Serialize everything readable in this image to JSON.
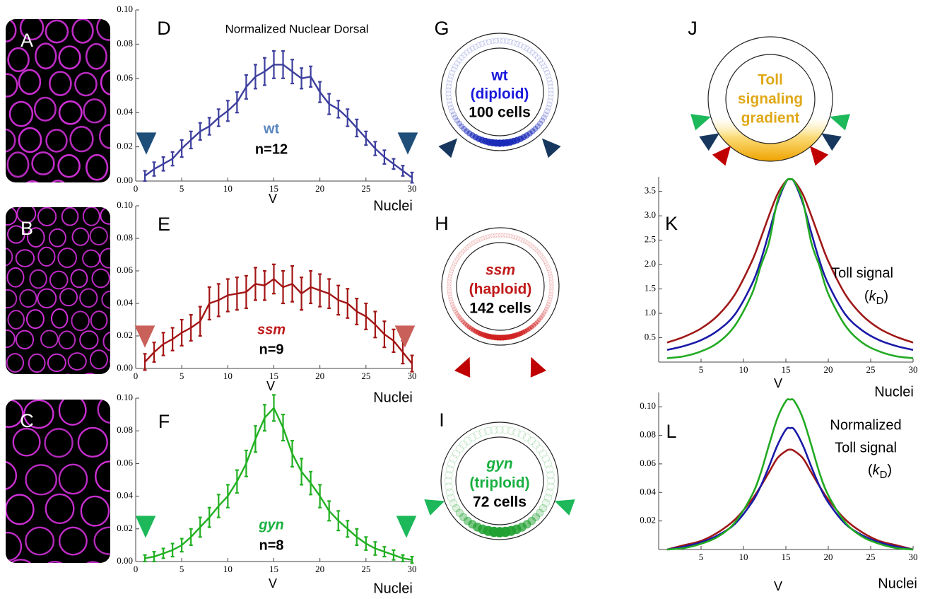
{
  "images": [
    {
      "panel": "A"
    },
    {
      "panel": "B"
    },
    {
      "panel": "C"
    }
  ],
  "diagrams": [
    {
      "panel": "G",
      "lines": [
        "wt",
        "(diploid)",
        "100 cells"
      ],
      "colors": [
        "#1a1add",
        "#1a1add",
        "#000000"
      ],
      "ring_color": "#1a2ab8",
      "marker_color": "#17375e"
    },
    {
      "panel": "H",
      "lines": [
        "ssm",
        "(haploid)",
        "142 cells"
      ],
      "colors": [
        "#c01818",
        "#c01818",
        "#000000"
      ],
      "ring_color": "#d02020",
      "marker_color": "#c00000"
    },
    {
      "panel": "I",
      "lines": [
        "gyn",
        "(triploid)",
        "72 cells"
      ],
      "colors": [
        "#18b040",
        "#18b040",
        "#000000"
      ],
      "ring_color": "#20a030",
      "marker_color": "#1cb85a"
    },
    {
      "panel": "J",
      "lines": [
        "Toll",
        "signaling",
        "gradient"
      ],
      "colors": [
        "#e0a818",
        "#e0a818",
        "#e0a818"
      ]
    }
  ],
  "chart_data": [
    {
      "type": "line",
      "panel": "D",
      "title": "Normalized Nuclear Dorsal",
      "annotations": [
        "wt",
        "n=12"
      ],
      "annotation_colors": [
        "#5b87c0",
        "#000000"
      ],
      "xlabel": "Nuclei",
      "v_label": "V",
      "marker_color": "#1f4e79",
      "x": [
        1,
        2,
        3,
        4,
        5,
        6,
        7,
        8,
        9,
        10,
        11,
        12,
        13,
        14,
        15,
        16,
        17,
        18,
        19,
        20,
        21,
        22,
        23,
        24,
        25,
        26,
        27,
        28,
        29,
        30
      ],
      "series": [
        {
          "color": "#3d3f9e",
          "values": [
            0.003,
            0.007,
            0.01,
            0.013,
            0.019,
            0.024,
            0.029,
            0.032,
            0.037,
            0.041,
            0.046,
            0.055,
            0.061,
            0.064,
            0.068,
            0.068,
            0.064,
            0.06,
            0.061,
            0.052,
            0.045,
            0.042,
            0.037,
            0.031,
            0.025,
            0.019,
            0.014,
            0.01,
            0.006,
            0.002
          ],
          "errors": [
            0.003,
            0.004,
            0.004,
            0.004,
            0.005,
            0.005,
            0.005,
            0.005,
            0.005,
            0.006,
            0.006,
            0.007,
            0.007,
            0.008,
            0.008,
            0.008,
            0.007,
            0.006,
            0.006,
            0.006,
            0.006,
            0.005,
            0.005,
            0.005,
            0.004,
            0.004,
            0.004,
            0.003,
            0.003,
            0.003
          ]
        }
      ],
      "xlim": [
        0,
        30
      ],
      "xticks": [
        0,
        5,
        10,
        15,
        20,
        25,
        30
      ],
      "ylim": [
        0,
        0.1
      ],
      "yticks": [
        {
          "value": 0,
          "label": "0.00"
        },
        0.02,
        0.04,
        0.06,
        0.08,
        {
          "value": 0.1,
          "label": "0.10"
        }
      ]
    },
    {
      "type": "line",
      "panel": "E",
      "annotations": [
        "ssm",
        "n=9"
      ],
      "annotation_colors": [
        "#c01818",
        "#000000"
      ],
      "xlabel": "Nuclei",
      "v_label": "V",
      "marker_color": "#c9605a",
      "x": [
        1,
        2,
        3,
        4,
        5,
        6,
        7,
        8,
        9,
        10,
        11,
        12,
        13,
        14,
        15,
        16,
        17,
        18,
        19,
        20,
        21,
        22,
        23,
        24,
        25,
        26,
        27,
        28,
        29,
        30
      ],
      "series": [
        {
          "color": "#a31515",
          "values": [
            0.004,
            0.01,
            0.015,
            0.018,
            0.022,
            0.025,
            0.029,
            0.04,
            0.042,
            0.045,
            0.046,
            0.047,
            0.052,
            0.051,
            0.055,
            0.05,
            0.052,
            0.046,
            0.05,
            0.048,
            0.046,
            0.042,
            0.04,
            0.035,
            0.032,
            0.027,
            0.021,
            0.017,
            0.01,
            0.003
          ],
          "errors": [
            0.005,
            0.006,
            0.007,
            0.007,
            0.008,
            0.008,
            0.009,
            0.01,
            0.01,
            0.01,
            0.01,
            0.01,
            0.01,
            0.009,
            0.009,
            0.01,
            0.011,
            0.01,
            0.01,
            0.01,
            0.009,
            0.009,
            0.009,
            0.008,
            0.008,
            0.008,
            0.008,
            0.007,
            0.007,
            0.005
          ]
        }
      ],
      "xlim": [
        0,
        30
      ],
      "xticks": [
        0,
        5,
        10,
        15,
        20,
        25,
        30
      ],
      "ylim": [
        0,
        0.1
      ],
      "yticks": [
        {
          "value": 0,
          "label": "0.00"
        },
        0.02,
        0.04,
        0.06,
        0.08,
        {
          "value": 0.1,
          "label": "0.10"
        }
      ]
    },
    {
      "type": "line",
      "panel": "F",
      "annotations": [
        "gyn",
        "n=8"
      ],
      "annotation_colors": [
        "#18b040",
        "#000000"
      ],
      "xlabel": "Nuclei",
      "v_label": "V",
      "marker_color": "#1cb85a",
      "x": [
        1,
        2,
        3,
        4,
        5,
        6,
        7,
        8,
        9,
        10,
        11,
        12,
        13,
        14,
        15,
        16,
        17,
        18,
        19,
        20,
        21,
        22,
        23,
        24,
        25,
        26,
        27,
        28,
        29,
        30
      ],
      "series": [
        {
          "color": "#22b022",
          "values": [
            0.002,
            0.003,
            0.005,
            0.007,
            0.01,
            0.015,
            0.021,
            0.027,
            0.034,
            0.04,
            0.049,
            0.06,
            0.075,
            0.088,
            0.094,
            0.082,
            0.066,
            0.055,
            0.048,
            0.04,
            0.031,
            0.025,
            0.02,
            0.015,
            0.011,
            0.008,
            0.006,
            0.004,
            0.002,
            0.001
          ],
          "errors": [
            0.002,
            0.003,
            0.003,
            0.004,
            0.004,
            0.005,
            0.006,
            0.006,
            0.007,
            0.007,
            0.007,
            0.008,
            0.008,
            0.008,
            0.008,
            0.008,
            0.008,
            0.008,
            0.007,
            0.007,
            0.006,
            0.006,
            0.005,
            0.005,
            0.004,
            0.004,
            0.003,
            0.003,
            0.002,
            0.002
          ]
        }
      ],
      "xlim": [
        0,
        30
      ],
      "xticks": [
        0,
        5,
        10,
        15,
        20,
        25,
        30
      ],
      "ylim": [
        0,
        0.1
      ],
      "yticks": [
        {
          "value": 0,
          "label": "0.00"
        },
        0.02,
        0.04,
        0.06,
        0.08,
        {
          "value": 0.1,
          "label": "0.10"
        }
      ]
    },
    {
      "type": "line",
      "panel": "K",
      "smooth": true,
      "annotations": [
        "Toll signal"
      ],
      "annotation_colors": [
        "#000000"
      ],
      "k_label": [
        "(",
        "k",
        "D",
        ")"
      ],
      "xlabel": "Nuclei",
      "v_label": "V",
      "x": [
        1,
        3,
        5,
        7,
        9,
        11,
        12,
        13,
        14,
        15,
        15.5,
        16,
        17,
        18,
        19,
        20,
        22,
        24,
        26,
        28,
        30
      ],
      "series": [
        {
          "color": "#a01818",
          "values": [
            0.4,
            0.52,
            0.69,
            0.96,
            1.39,
            2.07,
            2.52,
            3.0,
            3.44,
            3.71,
            3.75,
            3.71,
            3.44,
            3.0,
            2.52,
            2.07,
            1.39,
            0.96,
            0.69,
            0.52,
            0.4
          ]
        },
        {
          "color": "#1a1aa8",
          "values": [
            0.25,
            0.33,
            0.45,
            0.65,
            0.98,
            1.6,
            2.06,
            2.65,
            3.26,
            3.69,
            3.75,
            3.69,
            3.26,
            2.65,
            2.06,
            1.6,
            0.98,
            0.65,
            0.45,
            0.33,
            0.25
          ]
        },
        {
          "color": "#22aa22",
          "values": [
            0.08,
            0.12,
            0.22,
            0.4,
            0.75,
            1.4,
            1.95,
            2.45,
            3.3,
            3.7,
            3.75,
            3.7,
            3.3,
            2.45,
            1.95,
            1.4,
            0.75,
            0.4,
            0.22,
            0.12,
            0.08
          ]
        }
      ],
      "xlim": [
        0,
        30
      ],
      "xticks": [
        5,
        10,
        15,
        20,
        25,
        30
      ],
      "ylim": [
        0,
        3.8
      ],
      "yticks": [
        0.5,
        {
          "value": 1,
          "label": "1.0"
        },
        1.5,
        {
          "value": 2,
          "label": "2.0"
        },
        2.5,
        {
          "value": 3,
          "label": "3.0"
        },
        3.5
      ]
    },
    {
      "type": "line",
      "panel": "L",
      "smooth": true,
      "annotations": [
        "Normalized",
        "Toll signal"
      ],
      "annotation_colors": [
        "#000000",
        "#000000"
      ],
      "k_label": [
        "(",
        "k",
        "D",
        ")"
      ],
      "xlabel": "Nuclei",
      "v_label": "V",
      "x": [
        1,
        3,
        5,
        7,
        9,
        11,
        12,
        13,
        14,
        15,
        15.5,
        16,
        17,
        18,
        19,
        20,
        22,
        24,
        26,
        28,
        30
      ],
      "series": [
        {
          "color": "#a01818",
          "values": [
            0,
            0.003,
            0.006,
            0.012,
            0.021,
            0.035,
            0.044,
            0.054,
            0.064,
            0.069,
            0.07,
            0.069,
            0.064,
            0.054,
            0.044,
            0.035,
            0.021,
            0.012,
            0.006,
            0.003,
            0
          ]
        },
        {
          "color": "#1a1aa8",
          "values": [
            0,
            0.002,
            0.005,
            0.01,
            0.018,
            0.033,
            0.044,
            0.058,
            0.073,
            0.084,
            0.085,
            0.084,
            0.073,
            0.058,
            0.044,
            0.033,
            0.018,
            0.01,
            0.005,
            0.002,
            0
          ]
        },
        {
          "color": "#22aa22",
          "values": [
            0,
            0.001,
            0.004,
            0.009,
            0.019,
            0.038,
            0.053,
            0.073,
            0.092,
            0.104,
            0.105,
            0.104,
            0.092,
            0.073,
            0.053,
            0.038,
            0.019,
            0.009,
            0.004,
            0.001,
            0
          ]
        }
      ],
      "xlim": [
        0,
        30
      ],
      "xticks": [
        5,
        10,
        15,
        20,
        25,
        30
      ],
      "ylim": [
        0,
        0.11
      ],
      "yticks": [
        0.02,
        0.04,
        0.06,
        0.08,
        {
          "value": 0.1,
          "label": "0.10"
        }
      ]
    }
  ]
}
